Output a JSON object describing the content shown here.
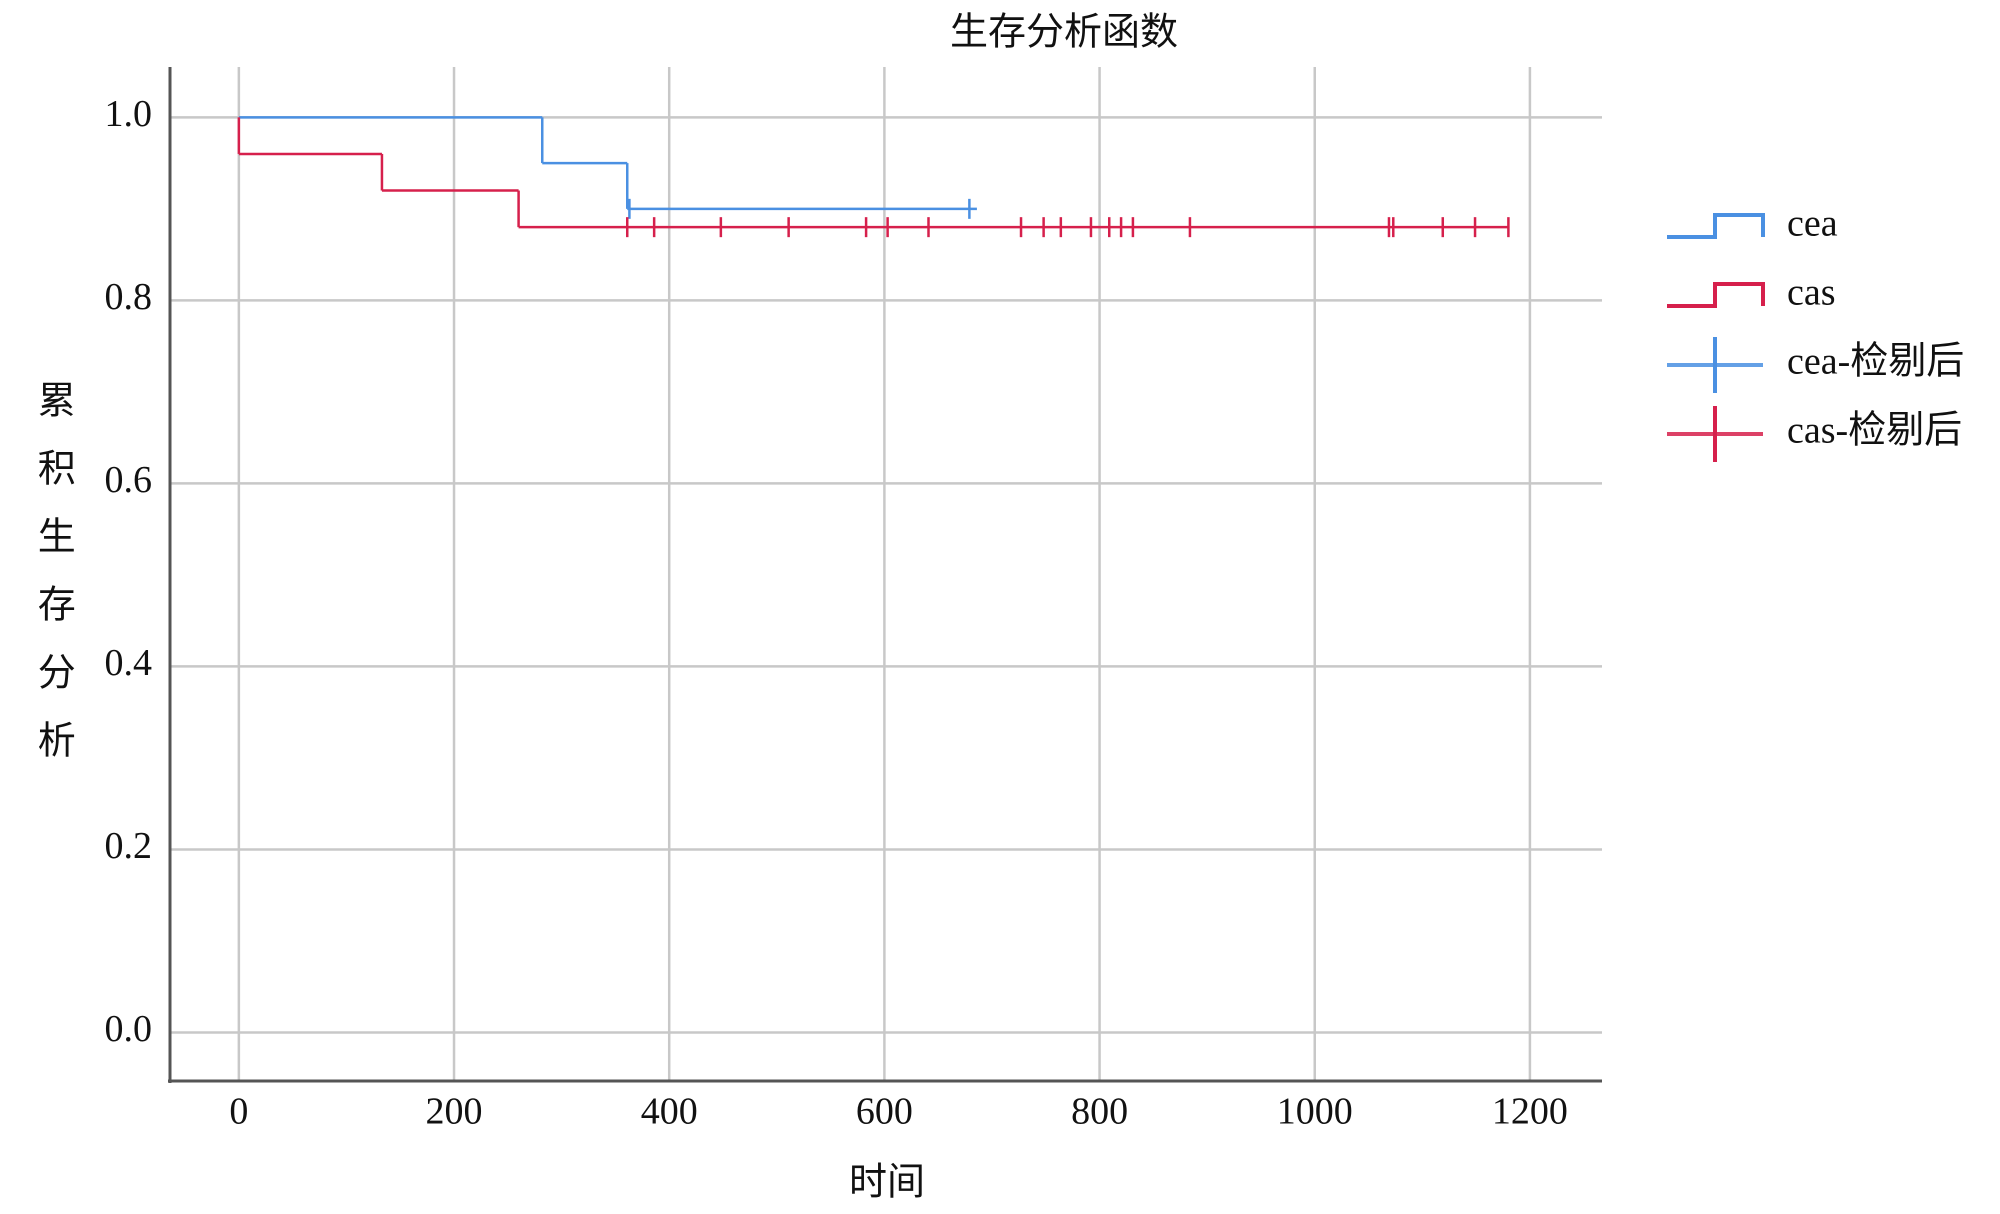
{
  "chart_data": {
    "type": "kaplan-meier",
    "title": "生存分析函数",
    "x_label": "时间",
    "y_label": "累积生存分析",
    "xlim": [
      -64,
      1267
    ],
    "ylim": [
      -0.053,
      1.055
    ],
    "xticks": [
      0,
      200,
      400,
      600,
      800,
      1000,
      1200
    ],
    "yticks": [
      {
        "value": 0,
        "label": "0.0"
      },
      0.2,
      0.4,
      0.6,
      0.8,
      {
        "value": 1,
        "label": "1.0"
      }
    ],
    "grid": true,
    "legend": "right",
    "series": [
      {
        "name": "cea",
        "marker": "step",
        "color": "#4a90e2",
        "x": [
          0,
          282,
          361,
          686
        ],
        "values": [
          1.0,
          0.95,
          0.9,
          0.9
        ]
      },
      {
        "name": "cas",
        "marker": "step",
        "color": "#d6204c",
        "x": [
          0,
          0,
          133,
          260,
          1180
        ],
        "values": [
          1.0,
          0.96,
          0.92,
          0.88,
          0.88
        ]
      },
      {
        "name": "cea-检剔后",
        "marker": "censor",
        "color": "#4a90e2",
        "x": [
          363,
          679
        ],
        "values": [
          0.9,
          0.9
        ]
      },
      {
        "name": "cas-检剔后",
        "marker": "censor",
        "color": "#d6204c",
        "x": [
          361,
          386,
          448,
          511,
          583,
          603,
          641,
          727,
          748,
          764,
          792,
          809,
          820,
          831,
          884,
          1069,
          1073,
          1119,
          1149,
          1180
        ],
        "values": [
          0.88,
          0.88,
          0.88,
          0.88,
          0.88,
          0.88,
          0.88,
          0.88,
          0.88,
          0.88,
          0.88,
          0.88,
          0.88,
          0.88,
          0.88,
          0.88,
          0.88,
          0.88,
          0.88,
          0.88
        ]
      }
    ]
  }
}
